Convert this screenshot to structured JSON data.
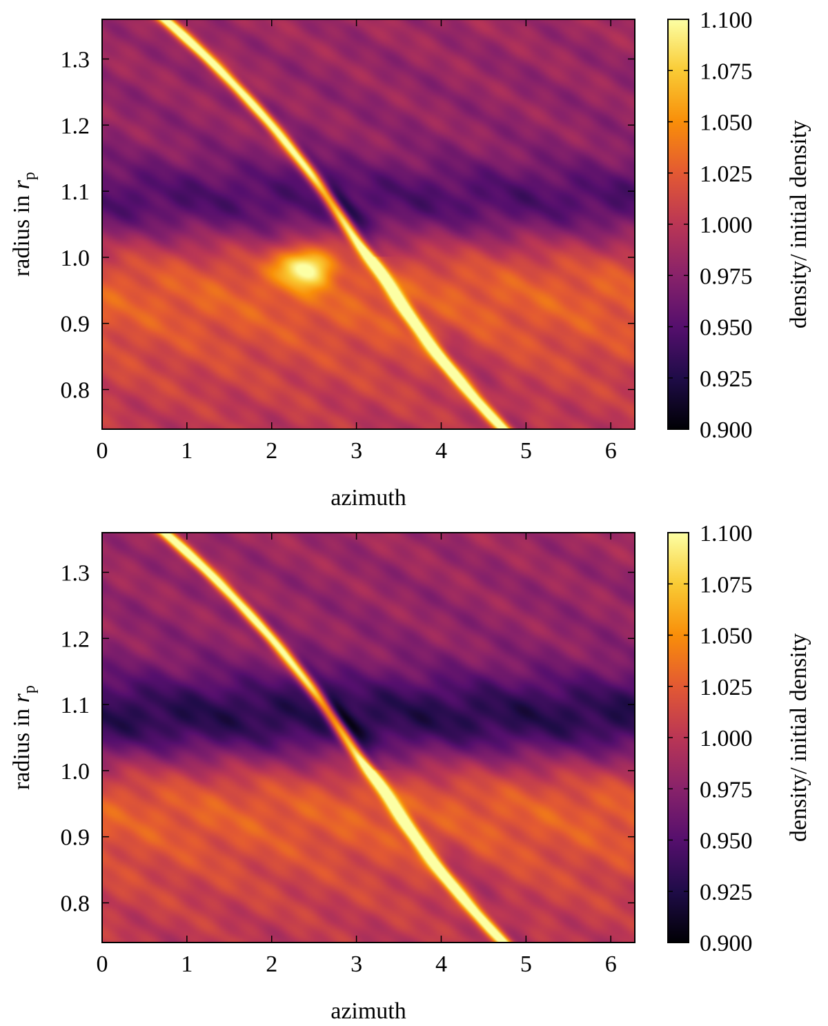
{
  "chart_data": [
    {
      "type": "heatmap",
      "panel": "top",
      "xlabel": "azimuth",
      "ylabel_main": "radius in ",
      "ylabel_var": "r",
      "ylabel_sub": "p",
      "xlim": [
        0,
        6.2832
      ],
      "ylim": [
        0.74,
        1.36
      ],
      "x_ticks": [
        0,
        1,
        2,
        3,
        4,
        5,
        6
      ],
      "y_ticks": [
        0.8,
        0.9,
        1.0,
        1.1,
        1.2,
        1.3
      ],
      "y_tick_labels": [
        "0.8",
        "0.9",
        "1.0",
        "1.1",
        "1.2",
        "1.3"
      ],
      "colorbar": {
        "label": "density/ initial density",
        "range": [
          0.9,
          1.1
        ],
        "ticks": [
          "0.900",
          "0.925",
          "0.950",
          "0.975",
          "1.000",
          "1.025",
          "1.050",
          "1.075",
          "1.100"
        ],
        "colormap": [
          "#000004",
          "#1f0c48",
          "#550f6d",
          "#88226a",
          "#ba3655",
          "#e35933",
          "#f98e09",
          "#f9cb35",
          "#fcffa4"
        ]
      },
      "features": {
        "spiral_wake": {
          "description_values": "bright curve through azimuth ~3.1 at r=1.0",
          "peak": 1.1
        },
        "inner_bright_band_r": [
          0.92,
          1.0
        ],
        "outer_dark_gap_r": [
          1.04,
          1.12
        ],
        "clump": {
          "azimuth": 2.4,
          "radius": 0.985,
          "value": 1.09
        }
      }
    },
    {
      "type": "heatmap",
      "panel": "bottom",
      "xlabel": "azimuth",
      "ylabel_main": "radius in ",
      "ylabel_var": "r",
      "ylabel_sub": "p",
      "xlim": [
        0,
        6.2832
      ],
      "ylim": [
        0.74,
        1.36
      ],
      "x_ticks": [
        0,
        1,
        2,
        3,
        4,
        5,
        6
      ],
      "y_ticks": [
        0.8,
        0.9,
        1.0,
        1.1,
        1.2,
        1.3
      ],
      "y_tick_labels": [
        "0.8",
        "0.9",
        "1.0",
        "1.1",
        "1.2",
        "1.3"
      ],
      "colorbar": {
        "label": "density/ initial density",
        "range": [
          0.9,
          1.1
        ],
        "ticks": [
          "0.900",
          "0.925",
          "0.950",
          "0.975",
          "1.000",
          "1.025",
          "1.050",
          "1.075",
          "1.100"
        ],
        "colormap": [
          "#000004",
          "#1f0c48",
          "#550f6d",
          "#88226a",
          "#ba3655",
          "#e35933",
          "#f98e09",
          "#f9cb35",
          "#fcffa4"
        ]
      },
      "features": {
        "spiral_wake": {
          "description_values": "bright curve through azimuth ~3.1 at r=1.0",
          "peak": 1.1
        },
        "inner_bright_band_r": [
          0.92,
          1.0
        ],
        "outer_dark_gap_r": [
          1.03,
          1.12
        ],
        "clump": null
      }
    }
  ]
}
